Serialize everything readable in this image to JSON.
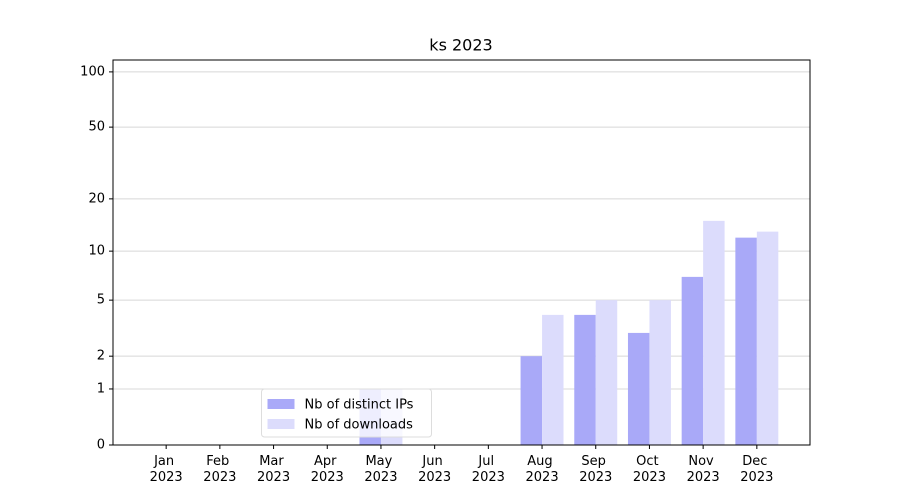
{
  "chart_data": {
    "type": "bar",
    "title": "ks 2023",
    "scale": "log1p",
    "categories": [
      "Jan 2023",
      "Feb 2023",
      "Mar 2023",
      "Apr 2023",
      "May 2023",
      "Jun 2023",
      "Jul 2023",
      "Aug 2023",
      "Sep 2023",
      "Oct 2023",
      "Nov 2023",
      "Dec 2023"
    ],
    "series": [
      {
        "name": "Nb of distinct IPs",
        "color": "#a9a9f8",
        "values": [
          0,
          0,
          0,
          0,
          1,
          0,
          0,
          2,
          4,
          3,
          7,
          12
        ]
      },
      {
        "name": "Nb of downloads",
        "color": "#dcdcfc",
        "values": [
          0,
          0,
          0,
          0,
          1,
          0,
          0,
          4,
          5,
          5,
          15,
          13
        ]
      }
    ],
    "ylim": [
      0,
      116
    ],
    "yticks": [
      0,
      1,
      2,
      5,
      10,
      20,
      50,
      100
    ],
    "grid": true,
    "legend": "lower center"
  }
}
